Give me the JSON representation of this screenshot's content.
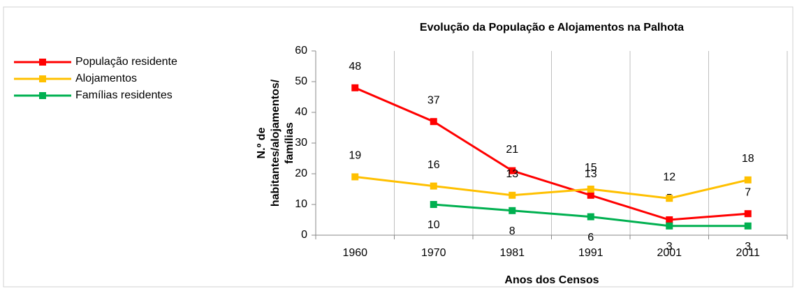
{
  "chart_data": {
    "type": "line",
    "title": "Evolução da População e Alojamentos na Palhota",
    "x_label": "Anos dos Censos",
    "y_label": [
      "N.º de",
      "habitantes/alojamentos/",
      "famílias"
    ],
    "categories": [
      "1960",
      "1970",
      "1981",
      "1991",
      "2001",
      "2011"
    ],
    "series": [
      {
        "name": "População residente",
        "color": "#ff0000",
        "values": [
          48,
          37,
          21,
          13,
          5,
          7
        ],
        "label_position": "above"
      },
      {
        "name": "Alojamentos",
        "color": "#ffc000",
        "values": [
          19,
          16,
          13,
          15,
          12,
          18
        ],
        "label_position": "above"
      },
      {
        "name": "Famílias residentes",
        "color": "#00b050",
        "values": [
          null,
          10,
          8,
          6,
          3,
          3
        ],
        "label_position": "below"
      }
    ],
    "ylim": [
      0,
      60
    ],
    "yticks": [
      0,
      10,
      20,
      30,
      40,
      50,
      60
    ],
    "grid": "vertical",
    "legend": "left"
  }
}
